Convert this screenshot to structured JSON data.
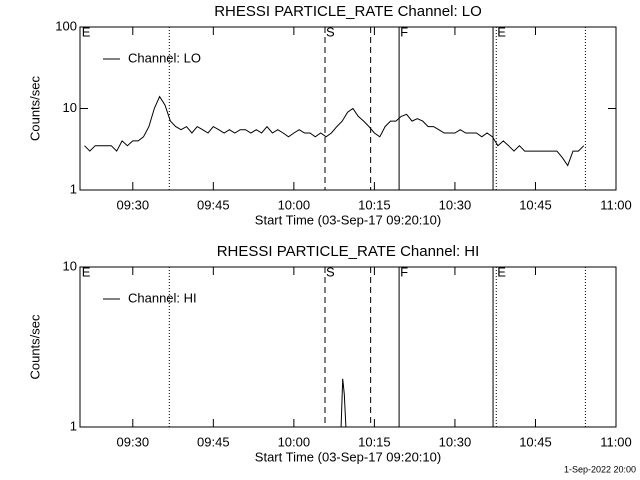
{
  "chart_data": [
    {
      "type": "line",
      "title": "RHESSI PARTICLE_RATE Channel: LO",
      "x_label": "Start Time (03-Sep-17 09:20:10)",
      "y_label": "Counts/sec",
      "log_y": true,
      "xlim": [
        560.167,
        660
      ],
      "ylim": [
        1,
        100
      ],
      "yticks": [
        1,
        10,
        100
      ],
      "xticks": [
        {
          "value": 570,
          "label": "09:30"
        },
        {
          "value": 585,
          "label": "09:45"
        },
        {
          "value": 600,
          "label": "10:00"
        },
        {
          "value": 615,
          "label": "10:15"
        },
        {
          "value": 630,
          "label": "10:30"
        },
        {
          "value": 645,
          "label": "10:45"
        },
        {
          "value": 660,
          "label": "11:00"
        }
      ],
      "x": [
        561,
        562,
        563,
        564,
        565,
        566,
        567,
        568,
        569,
        570,
        571,
        572,
        573,
        574,
        575,
        576,
        577,
        578,
        579,
        580,
        581,
        582,
        583,
        584,
        585,
        586,
        587,
        588,
        589,
        590,
        591,
        592,
        593,
        594,
        595,
        596,
        597,
        598,
        599,
        600,
        601,
        602,
        603,
        604,
        605,
        606,
        607,
        608,
        609,
        610,
        611,
        612,
        613,
        614,
        615,
        616,
        617,
        618,
        619,
        620,
        621,
        622,
        623,
        624,
        625,
        626,
        627,
        628,
        629,
        630,
        631,
        632,
        633,
        634,
        635,
        636,
        637,
        638,
        639,
        640,
        641,
        642,
        643,
        644,
        645,
        646,
        647,
        648,
        649,
        650,
        651,
        652,
        653,
        654
      ],
      "series": [
        {
          "name": "Channel: LO",
          "color": "#000000",
          "values": [
            3.5,
            3,
            3.5,
            3.5,
            3.5,
            3.5,
            3,
            4,
            3.5,
            4,
            4,
            4.5,
            6,
            10,
            14,
            11,
            7,
            6,
            5.5,
            6,
            5,
            6,
            5.5,
            5,
            6,
            5.5,
            5,
            5.5,
            5,
            5.5,
            5.5,
            5,
            5.5,
            5,
            6,
            5,
            5.5,
            5,
            4.5,
            5,
            5.5,
            5,
            5,
            4.5,
            5,
            4.5,
            5,
            6,
            7,
            9,
            10,
            8,
            7,
            6,
            5,
            4.5,
            6,
            7,
            7,
            8,
            8.5,
            7,
            7.5,
            7,
            6,
            6,
            5.5,
            5,
            5,
            5,
            5.5,
            5,
            5,
            5,
            4.5,
            5,
            4.5,
            3.5,
            4,
            3.5,
            3,
            3.5,
            3,
            3,
            3,
            3,
            3,
            3,
            3,
            2.5,
            2,
            3,
            3,
            3.5
          ]
        }
      ],
      "markers": [
        {
          "x": 576.8,
          "style": "dotted"
        },
        {
          "x": 605.8,
          "style": "dashed"
        },
        {
          "x": 614.3,
          "style": "dashed"
        },
        {
          "x": 619.6,
          "style": "solid"
        },
        {
          "x": 637.1,
          "style": "solid"
        },
        {
          "x": 637.7,
          "style": "dotted"
        },
        {
          "x": 654.3,
          "style": "dotted"
        }
      ],
      "marker_labels": [
        {
          "x": 560.3,
          "label": "E"
        },
        {
          "x": 605.8,
          "label": "S"
        },
        {
          "x": 619.6,
          "label": "F"
        },
        {
          "x": 637.7,
          "label": "E"
        }
      ]
    },
    {
      "type": "line",
      "title": "RHESSI PARTICLE_RATE Channel: HI",
      "x_label": "Start Time (03-Sep-17 09:20:10)",
      "y_label": "Counts/sec",
      "log_y": true,
      "xlim": [
        560.167,
        660
      ],
      "ylim": [
        1,
        10
      ],
      "yticks": [
        1,
        10
      ],
      "xticks": [
        {
          "value": 570,
          "label": "09:30"
        },
        {
          "value": 585,
          "label": "09:45"
        },
        {
          "value": 600,
          "label": "10:00"
        },
        {
          "value": 615,
          "label": "10:15"
        },
        {
          "value": 630,
          "label": "10:30"
        },
        {
          "value": 645,
          "label": "10:45"
        },
        {
          "value": 660,
          "label": "11:00"
        }
      ],
      "x": [
        608.8,
        609.1,
        609.4,
        609.7
      ],
      "series": [
        {
          "name": "Channel: HI",
          "color": "#000000",
          "values": [
            1,
            2,
            1.6,
            1
          ]
        }
      ],
      "markers": [
        {
          "x": 576.8,
          "style": "dotted"
        },
        {
          "x": 605.8,
          "style": "dashed"
        },
        {
          "x": 614.3,
          "style": "dashed"
        },
        {
          "x": 619.6,
          "style": "solid"
        },
        {
          "x": 637.1,
          "style": "solid"
        },
        {
          "x": 637.7,
          "style": "dotted"
        },
        {
          "x": 654.3,
          "style": "dotted"
        }
      ],
      "marker_labels": [
        {
          "x": 560.3,
          "label": "E"
        },
        {
          "x": 605.8,
          "label": "S"
        },
        {
          "x": 619.6,
          "label": "F"
        },
        {
          "x": 637.7,
          "label": "E"
        }
      ]
    }
  ],
  "footer": "1-Sep-2022 20:00"
}
